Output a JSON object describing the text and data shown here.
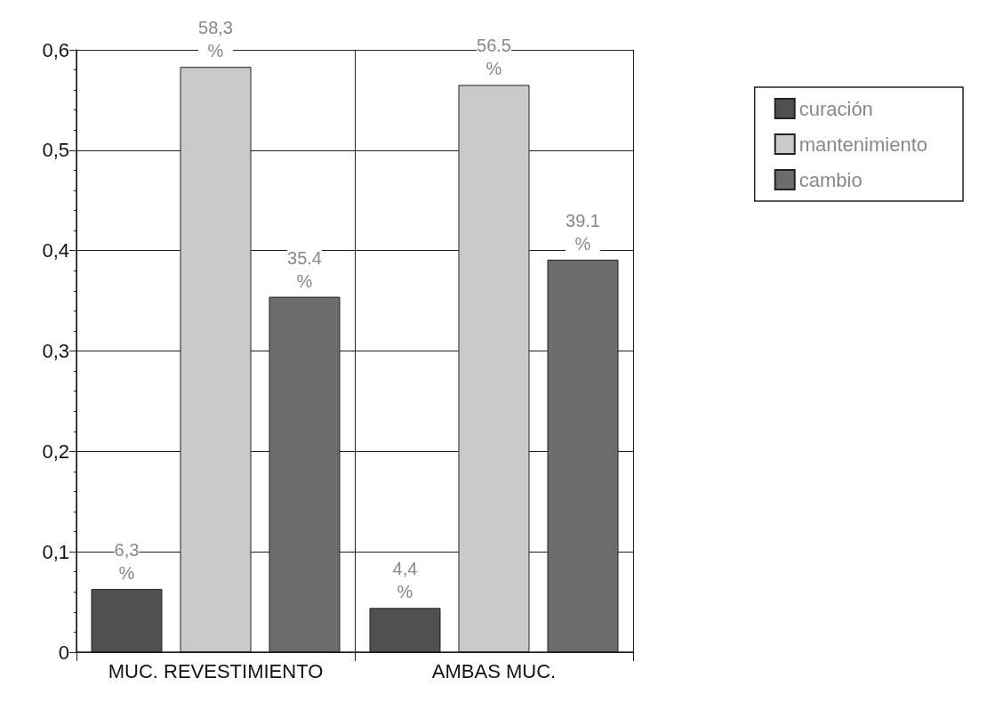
{
  "chart_data": {
    "type": "bar",
    "categories": [
      "MUC. REVESTIMIENTO",
      "AMBAS MUC."
    ],
    "series": [
      {
        "name": "curación",
        "color": "#505050",
        "values": [
          0.063,
          0.044
        ],
        "value_labels": [
          "6,3 %",
          "4,4 %"
        ]
      },
      {
        "name": "mantenimiento",
        "color": "#cacaca",
        "values": [
          0.583,
          0.565
        ],
        "value_labels": [
          "58,3 %",
          "56.5 %"
        ]
      },
      {
        "name": "cambio",
        "color": "#6c6c6c",
        "values": [
          0.354,
          0.391
        ],
        "value_labels": [
          "35.4 %",
          "39.1 %"
        ]
      }
    ],
    "ylim": [
      0,
      0.6
    ],
    "yticks": [
      0,
      {
        "value": 0.1,
        "label": "0,1"
      },
      {
        "value": 0.2,
        "label": "0,2"
      },
      {
        "value": 0.3,
        "label": "0,3"
      },
      {
        "value": 0.4,
        "label": "0,4"
      },
      {
        "value": 0.5,
        "label": "0,5"
      },
      {
        "value": 0.6,
        "label": "0,6"
      }
    ],
    "grid": true,
    "legend": "top right"
  }
}
